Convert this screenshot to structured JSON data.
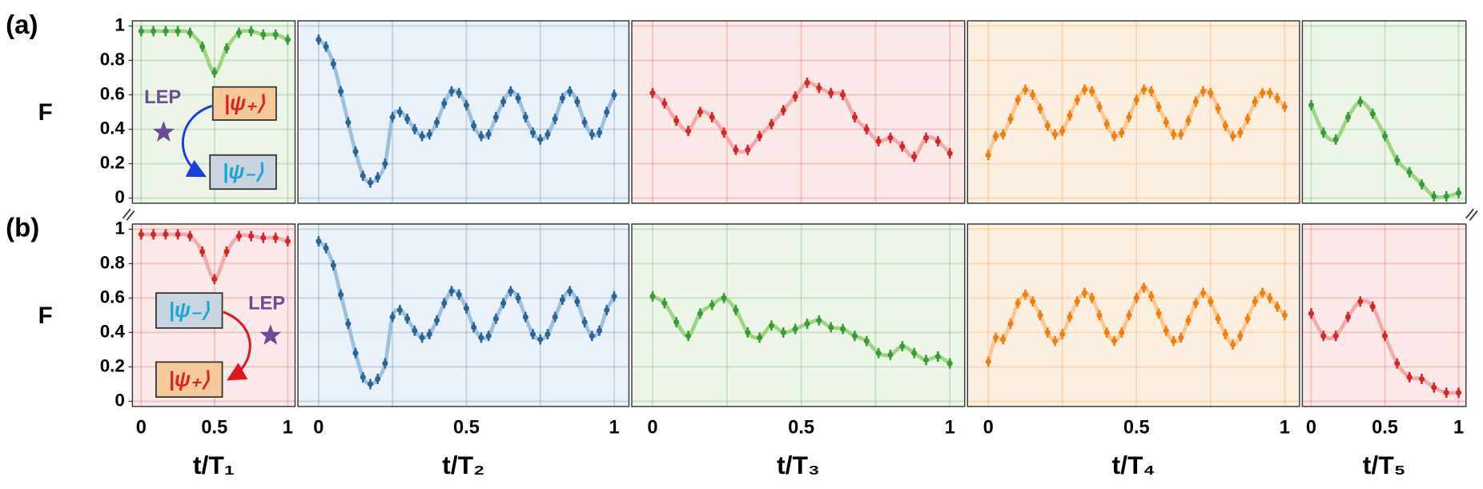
{
  "chart_data": [
    {
      "type": "line",
      "panel_label": "(a)",
      "ylabel": "F",
      "color": "#3a9a3a",
      "curve_color": "#8fcf6f",
      "background": "#edf5e8",
      "error": 0.03,
      "x": [
        0,
        0.083,
        0.167,
        0.25,
        0.333,
        0.417,
        0.5,
        0.583,
        0.667,
        0.75,
        0.833,
        0.917,
        1
      ],
      "values": [
        0.97,
        0.97,
        0.97,
        0.97,
        0.96,
        0.88,
        0.73,
        0.87,
        0.96,
        0.97,
        0.95,
        0.95,
        0.92
      ],
      "xlim": [
        -0.06,
        1.05
      ],
      "ylim": [
        -0.03,
        1.03
      ],
      "xticks": [
        0,
        0.5,
        1
      ],
      "yticks": [
        0,
        0.2,
        0.4,
        0.6,
        0.8,
        1
      ],
      "grid": true,
      "lep_label": "LEP",
      "state_from": "|ψ₊⟩",
      "state_to": "|ψ₋⟩"
    },
    {
      "type": "line",
      "color": "#2b6496",
      "curve_color": "#8fb8d8",
      "background": "#eaf1f8",
      "error": 0.03,
      "x": [
        0,
        0.025,
        0.05,
        0.075,
        0.1,
        0.125,
        0.15,
        0.175,
        0.2,
        0.225,
        0.25,
        0.275,
        0.3,
        0.325,
        0.35,
        0.375,
        0.4,
        0.425,
        0.45,
        0.475,
        0.5,
        0.525,
        0.55,
        0.575,
        0.6,
        0.625,
        0.65,
        0.675,
        0.7,
        0.725,
        0.75,
        0.775,
        0.8,
        0.825,
        0.85,
        0.875,
        0.9,
        0.925,
        0.95,
        0.975,
        1
      ],
      "values": [
        0.92,
        0.88,
        0.78,
        0.62,
        0.44,
        0.27,
        0.13,
        0.09,
        0.12,
        0.2,
        0.47,
        0.5,
        0.46,
        0.4,
        0.36,
        0.37,
        0.44,
        0.55,
        0.62,
        0.61,
        0.54,
        0.42,
        0.36,
        0.37,
        0.47,
        0.56,
        0.62,
        0.58,
        0.47,
        0.38,
        0.34,
        0.37,
        0.46,
        0.58,
        0.62,
        0.56,
        0.44,
        0.37,
        0.38,
        0.5,
        0.6
      ],
      "xlim": [
        -0.07,
        1.05
      ],
      "ylim": [
        -0.03,
        1.03
      ],
      "xticks": [
        0,
        0.5,
        1
      ],
      "minor_xticks": [
        0.25,
        0.75
      ],
      "yticks": [
        0,
        0.2,
        0.4,
        0.6,
        0.8,
        1
      ],
      "grid": true
    },
    {
      "type": "line",
      "color": "#d62728",
      "curve_color": "#f0a0a0",
      "background": "#fbe9e9",
      "error": 0.03,
      "x": [
        0,
        0.04,
        0.08,
        0.12,
        0.16,
        0.2,
        0.24,
        0.28,
        0.32,
        0.36,
        0.4,
        0.44,
        0.48,
        0.52,
        0.56,
        0.6,
        0.64,
        0.68,
        0.72,
        0.76,
        0.8,
        0.84,
        0.88,
        0.92,
        0.96,
        1
      ],
      "values": [
        0.61,
        0.55,
        0.45,
        0.39,
        0.5,
        0.47,
        0.38,
        0.28,
        0.28,
        0.36,
        0.43,
        0.51,
        0.59,
        0.67,
        0.64,
        0.61,
        0.6,
        0.47,
        0.4,
        0.33,
        0.35,
        0.3,
        0.24,
        0.35,
        0.33,
        0.26
      ],
      "xlim": [
        -0.07,
        1.05
      ],
      "ylim": [
        -0.03,
        1.03
      ],
      "xticks": [
        0,
        0.5,
        1
      ],
      "minor_xticks": [
        0.25,
        0.75
      ],
      "yticks": [
        0,
        0.2,
        0.4,
        0.6,
        0.8,
        1
      ],
      "grid": true
    },
    {
      "type": "line",
      "color": "#f07f10",
      "curve_color": "#f8bf80",
      "background": "#fdefe0",
      "error": 0.03,
      "x": [
        0,
        0.025,
        0.05,
        0.075,
        0.1,
        0.125,
        0.15,
        0.175,
        0.2,
        0.225,
        0.25,
        0.275,
        0.3,
        0.325,
        0.35,
        0.375,
        0.4,
        0.425,
        0.45,
        0.475,
        0.5,
        0.525,
        0.55,
        0.575,
        0.6,
        0.625,
        0.65,
        0.675,
        0.7,
        0.725,
        0.75,
        0.775,
        0.8,
        0.825,
        0.85,
        0.875,
        0.9,
        0.925,
        0.95,
        0.975,
        1
      ],
      "values": [
        0.25,
        0.36,
        0.37,
        0.46,
        0.57,
        0.63,
        0.6,
        0.52,
        0.42,
        0.37,
        0.39,
        0.48,
        0.57,
        0.63,
        0.62,
        0.53,
        0.43,
        0.36,
        0.38,
        0.47,
        0.57,
        0.63,
        0.62,
        0.53,
        0.44,
        0.37,
        0.37,
        0.45,
        0.56,
        0.62,
        0.61,
        0.52,
        0.42,
        0.36,
        0.38,
        0.46,
        0.56,
        0.61,
        0.61,
        0.58,
        0.53
      ],
      "xlim": [
        -0.07,
        1.05
      ],
      "ylim": [
        -0.03,
        1.03
      ],
      "xticks": [
        0,
        0.5,
        1
      ],
      "minor_xticks": [
        0.25,
        0.75
      ],
      "yticks": [
        0,
        0.2,
        0.4,
        0.6,
        0.8,
        1
      ],
      "grid": true
    },
    {
      "type": "line",
      "color": "#3a9a3a",
      "curve_color": "#8fcf6f",
      "background": "#edf5e8",
      "error": 0.03,
      "x": [
        0,
        0.083,
        0.167,
        0.25,
        0.333,
        0.417,
        0.5,
        0.583,
        0.667,
        0.75,
        0.833,
        0.917,
        1
      ],
      "values": [
        0.54,
        0.38,
        0.34,
        0.47,
        0.56,
        0.49,
        0.36,
        0.22,
        0.15,
        0.08,
        0.01,
        0.01,
        0.03
      ],
      "xlim": [
        -0.06,
        1.05
      ],
      "ylim": [
        -0.03,
        1.03
      ],
      "xticks": [
        0,
        0.5,
        1
      ],
      "yticks": [
        0,
        0.2,
        0.4,
        0.6,
        0.8,
        1
      ],
      "grid": true
    },
    {
      "type": "line",
      "panel_label": "(b)",
      "ylabel": "F",
      "color": "#d62728",
      "curve_color": "#f0a0a0",
      "background": "#fbe9e9",
      "error": 0.03,
      "x": [
        0,
        0.083,
        0.167,
        0.25,
        0.333,
        0.417,
        0.5,
        0.583,
        0.667,
        0.75,
        0.833,
        0.917,
        1
      ],
      "values": [
        0.97,
        0.97,
        0.97,
        0.97,
        0.96,
        0.87,
        0.71,
        0.87,
        0.96,
        0.96,
        0.95,
        0.95,
        0.93
      ],
      "xlim": [
        -0.06,
        1.05
      ],
      "ylim": [
        -0.03,
        1.03
      ],
      "xticks": [
        0,
        0.5,
        1
      ],
      "yticks": [
        0,
        0.2,
        0.4,
        0.6,
        0.8,
        1
      ],
      "grid": true,
      "xlabel": "t/T₁",
      "lep_label": "LEP",
      "state_from": "|ψ₋⟩",
      "state_to": "|ψ₊⟩"
    },
    {
      "type": "line",
      "color": "#2b6496",
      "curve_color": "#8fb8d8",
      "background": "#eaf1f8",
      "error": 0.03,
      "x": [
        0,
        0.025,
        0.05,
        0.075,
        0.1,
        0.125,
        0.15,
        0.175,
        0.2,
        0.225,
        0.25,
        0.275,
        0.3,
        0.325,
        0.35,
        0.375,
        0.4,
        0.425,
        0.45,
        0.475,
        0.5,
        0.525,
        0.55,
        0.575,
        0.6,
        0.625,
        0.65,
        0.675,
        0.7,
        0.725,
        0.75,
        0.775,
        0.8,
        0.825,
        0.85,
        0.875,
        0.9,
        0.925,
        0.95,
        0.975,
        1
      ],
      "values": [
        0.93,
        0.89,
        0.79,
        0.62,
        0.45,
        0.28,
        0.14,
        0.1,
        0.13,
        0.22,
        0.49,
        0.53,
        0.48,
        0.41,
        0.37,
        0.39,
        0.47,
        0.57,
        0.64,
        0.62,
        0.54,
        0.43,
        0.37,
        0.38,
        0.48,
        0.57,
        0.64,
        0.6,
        0.49,
        0.39,
        0.36,
        0.39,
        0.49,
        0.59,
        0.64,
        0.58,
        0.46,
        0.38,
        0.41,
        0.53,
        0.61
      ],
      "xlim": [
        -0.07,
        1.05
      ],
      "ylim": [
        -0.03,
        1.03
      ],
      "xticks": [
        0,
        0.5,
        1
      ],
      "minor_xticks": [
        0.25,
        0.75
      ],
      "yticks": [
        0,
        0.2,
        0.4,
        0.6,
        0.8,
        1
      ],
      "grid": true,
      "xlabel": "t/T₂"
    },
    {
      "type": "line",
      "color": "#3a9a3a",
      "curve_color": "#8fcf6f",
      "background": "#edf5e8",
      "error": 0.03,
      "x": [
        0,
        0.04,
        0.08,
        0.12,
        0.16,
        0.2,
        0.24,
        0.28,
        0.32,
        0.36,
        0.4,
        0.44,
        0.48,
        0.52,
        0.56,
        0.6,
        0.64,
        0.68,
        0.72,
        0.76,
        0.8,
        0.84,
        0.88,
        0.92,
        0.96,
        1
      ],
      "values": [
        0.61,
        0.57,
        0.46,
        0.38,
        0.51,
        0.56,
        0.6,
        0.53,
        0.4,
        0.37,
        0.44,
        0.4,
        0.42,
        0.45,
        0.47,
        0.43,
        0.42,
        0.38,
        0.35,
        0.28,
        0.27,
        0.32,
        0.28,
        0.24,
        0.26,
        0.22
      ],
      "xlim": [
        -0.07,
        1.05
      ],
      "ylim": [
        -0.03,
        1.03
      ],
      "xticks": [
        0,
        0.5,
        1
      ],
      "minor_xticks": [
        0.25,
        0.75
      ],
      "yticks": [
        0,
        0.2,
        0.4,
        0.6,
        0.8,
        1
      ],
      "grid": true,
      "xlabel": "t/T₃"
    },
    {
      "type": "line",
      "color": "#f07f10",
      "curve_color": "#f8bf80",
      "background": "#fdefe0",
      "error": 0.03,
      "x": [
        0,
        0.025,
        0.05,
        0.075,
        0.1,
        0.125,
        0.15,
        0.175,
        0.2,
        0.225,
        0.25,
        0.275,
        0.3,
        0.325,
        0.35,
        0.375,
        0.4,
        0.425,
        0.45,
        0.475,
        0.5,
        0.525,
        0.55,
        0.575,
        0.6,
        0.625,
        0.65,
        0.675,
        0.7,
        0.725,
        0.75,
        0.775,
        0.8,
        0.825,
        0.85,
        0.875,
        0.9,
        0.925,
        0.95,
        0.975,
        1
      ],
      "values": [
        0.23,
        0.37,
        0.36,
        0.45,
        0.57,
        0.62,
        0.58,
        0.5,
        0.4,
        0.35,
        0.39,
        0.49,
        0.58,
        0.63,
        0.6,
        0.5,
        0.4,
        0.35,
        0.4,
        0.5,
        0.6,
        0.66,
        0.61,
        0.51,
        0.41,
        0.35,
        0.37,
        0.47,
        0.57,
        0.63,
        0.58,
        0.48,
        0.39,
        0.33,
        0.38,
        0.48,
        0.58,
        0.63,
        0.6,
        0.55,
        0.5
      ],
      "xlim": [
        -0.07,
        1.05
      ],
      "ylim": [
        -0.03,
        1.03
      ],
      "xticks": [
        0,
        0.5,
        1
      ],
      "minor_xticks": [
        0.25,
        0.75
      ],
      "yticks": [
        0,
        0.2,
        0.4,
        0.6,
        0.8,
        1
      ],
      "grid": true,
      "xlabel": "t/T₄"
    },
    {
      "type": "line",
      "color": "#d62728",
      "curve_color": "#f0a0a0",
      "background": "#fbe9e9",
      "error": 0.03,
      "x": [
        0,
        0.083,
        0.167,
        0.25,
        0.333,
        0.417,
        0.5,
        0.583,
        0.667,
        0.75,
        0.833,
        0.917,
        1
      ],
      "values": [
        0.51,
        0.38,
        0.38,
        0.49,
        0.58,
        0.55,
        0.38,
        0.22,
        0.14,
        0.13,
        0.08,
        0.05,
        0.05
      ],
      "xlim": [
        -0.06,
        1.05
      ],
      "ylim": [
        -0.03,
        1.03
      ],
      "xticks": [
        0,
        0.5,
        1
      ],
      "yticks": [
        0,
        0.2,
        0.4,
        0.6,
        0.8,
        1
      ],
      "grid": true,
      "xlabel": "t/T₅"
    }
  ]
}
